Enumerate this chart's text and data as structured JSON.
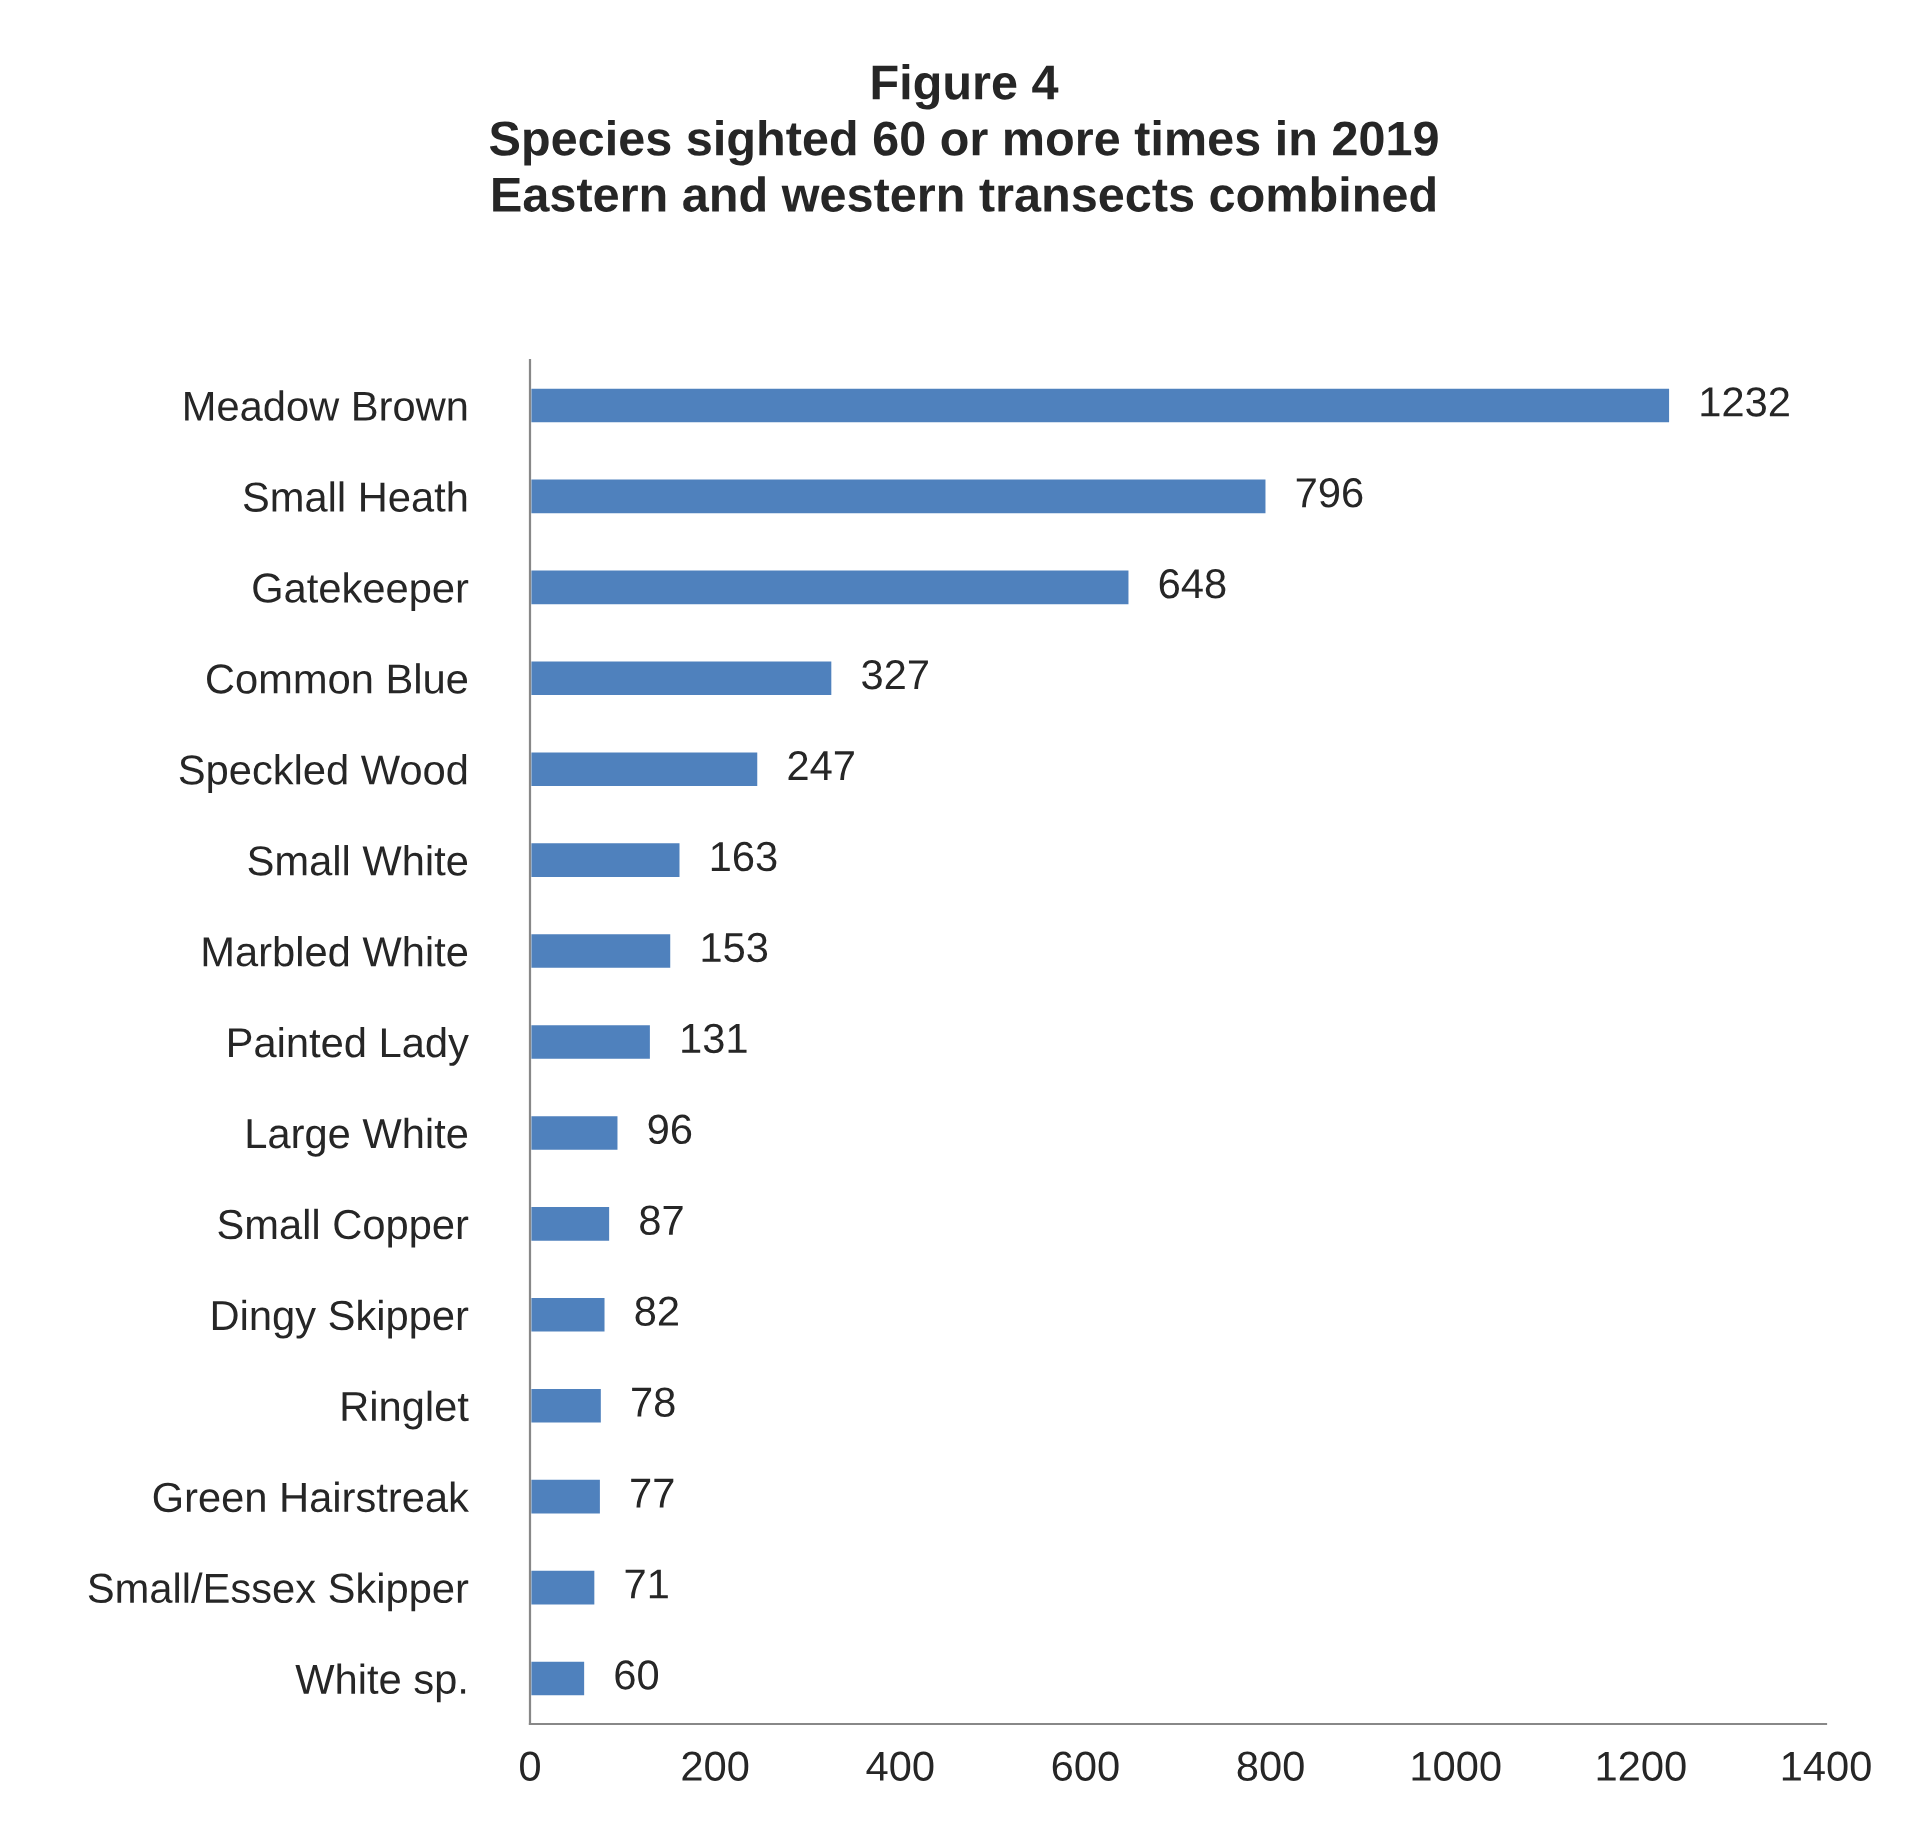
{
  "chart_data": {
    "type": "bar",
    "orientation": "horizontal",
    "title": "Figure 4\nSpecies sighted 60 or more times in 2019\nEastern and western transects combined",
    "categories": [
      "Meadow Brown",
      "Small Heath",
      "Gatekeeper",
      "Common Blue",
      "Speckled Wood",
      "Small White",
      "Marbled White",
      "Painted Lady",
      "Large White",
      "Small Copper",
      "Dingy Skipper",
      "Ringlet",
      "Green Hairstreak",
      "Small/Essex Skipper",
      "White sp."
    ],
    "values": [
      1232,
      796,
      648,
      327,
      247,
      163,
      153,
      131,
      96,
      87,
      82,
      78,
      77,
      71,
      60
    ],
    "color": "#4f81bd",
    "xlim": [
      0,
      1400
    ],
    "xticks": [
      0,
      200,
      400,
      600,
      800,
      1000,
      1200,
      1400
    ],
    "data_labels": true,
    "grid": false,
    "legend": false
  }
}
